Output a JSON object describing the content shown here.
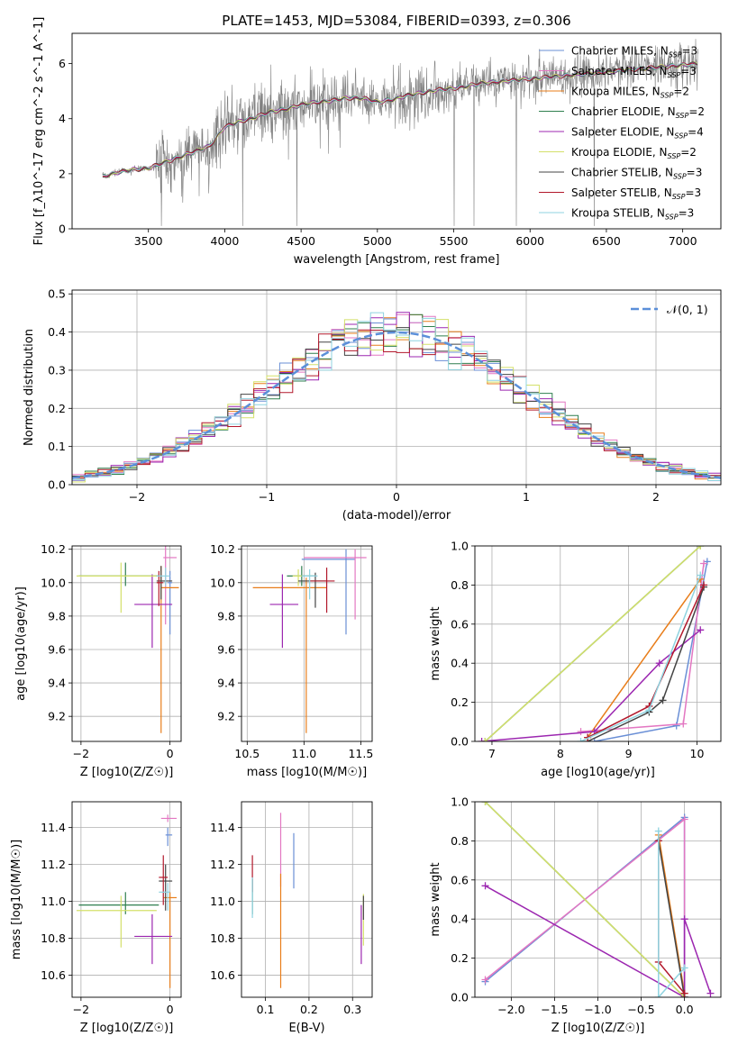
{
  "colors": {
    "miles_chabrier": "#6a8fd6",
    "miles_salpeter": "#e377c2",
    "miles_kroupa": "#e87d1a",
    "elodie_chabrier": "#2f7f4f",
    "elodie_salpeter": "#9c27b0",
    "elodie_kroupa": "#d4e06a",
    "stelib_chabrier": "#444444",
    "stelib_salpeter": "#b2182b",
    "stelib_kroupa": "#8fd3e0",
    "data": "#808080",
    "gauss": "#5b8fd9"
  },
  "chart_data": [
    {
      "id": "spectrum",
      "type": "line",
      "title": "PLATE=1453, MJD=53084, FIBERID=0393, z=0.306",
      "xlabel": "wavelength [Angstrom, rest frame]",
      "ylabel": "Flux [f_λ10^-17 erg cm^-2 s^-1 A^-1]",
      "xlim": [
        3000,
        7250
      ],
      "ylim": [
        0,
        7.1
      ],
      "xticks": [
        "3500",
        "4000",
        "4500",
        "5000",
        "5500",
        "6000",
        "6500",
        "7000"
      ],
      "yticks": [
        "0",
        "2",
        "4",
        "6"
      ],
      "grid": false,
      "legend_position": "top-right",
      "legend": [
        {
          "label": "Chabrier MILES, N_SSP=3",
          "color_key": "miles_chabrier"
        },
        {
          "label": "Salpeter MILES, N_SSP=3",
          "color_key": "miles_salpeter"
        },
        {
          "label": "Kroupa MILES, N_SSP=2",
          "color_key": "miles_kroupa"
        },
        {
          "label": "Chabrier ELODIE, N_SSP=2",
          "color_key": "elodie_chabrier"
        },
        {
          "label": "Salpeter ELODIE, N_SSP=4",
          "color_key": "elodie_salpeter"
        },
        {
          "label": "Kroupa ELODIE, N_SSP=2",
          "color_key": "elodie_kroupa"
        },
        {
          "label": "Chabrier STELIB, N_SSP=3",
          "color_key": "stelib_chabrier"
        },
        {
          "label": "Salpeter STELIB, N_SSP=3",
          "color_key": "stelib_salpeter"
        },
        {
          "label": "Kroupa STELIB, N_SSP=3",
          "color_key": "stelib_kroupa"
        }
      ],
      "continuum": {
        "x": [
          3200,
          3300,
          3400,
          3500,
          3600,
          3700,
          3800,
          3900,
          4000,
          4100,
          4200,
          4300,
          4400,
          4500,
          4600,
          4700,
          4800,
          4900,
          5000,
          5100,
          5200,
          5300,
          5400,
          5500,
          5600,
          5700,
          5800,
          5900,
          6000,
          6100,
          6200,
          6300,
          6400,
          6500,
          6600,
          6700,
          6800,
          6900,
          7000,
          7100
        ],
        "y": [
          1.9,
          2.05,
          2.15,
          2.2,
          2.4,
          2.6,
          2.8,
          3.0,
          3.7,
          3.9,
          4.05,
          4.25,
          4.35,
          4.5,
          4.6,
          4.65,
          4.75,
          4.75,
          4.6,
          4.7,
          4.85,
          4.95,
          5.05,
          5.1,
          5.2,
          5.3,
          5.35,
          5.4,
          5.45,
          5.5,
          5.55,
          5.6,
          5.65,
          5.7,
          5.75,
          5.8,
          5.85,
          5.9,
          5.95,
          6.0
        ]
      },
      "data_range": [
        3200,
        7100
      ]
    },
    {
      "id": "residuals",
      "type": "step",
      "xlabel": "(data-model)/error",
      "ylabel": "Normed distribution",
      "xlim": [
        -2.5,
        2.5
      ],
      "ylim": [
        0,
        0.51
      ],
      "xticks": [
        "−2",
        "−1",
        "0",
        "1",
        "2"
      ],
      "yticks": [
        "0.0",
        "0.1",
        "0.2",
        "0.3",
        "0.4",
        "0.5"
      ],
      "grid": true,
      "legend_position": "top-right",
      "legend_label": "𝒩(0, 1)",
      "bin_width": 0.1
    },
    {
      "id": "age_vs_Z",
      "type": "errorbar",
      "xlabel": "Z [log10(Z/Z☉)]",
      "ylabel": "age  [log10(age/yr)]",
      "xlim": [
        -2.2,
        0.25
      ],
      "ylim": [
        9.05,
        10.22
      ],
      "xticks": [
        "−2",
        "0"
      ],
      "yticks": [
        "9.2",
        "9.4",
        "9.6",
        "9.8",
        "10.0",
        "10.2"
      ],
      "grid": true,
      "points": [
        {
          "key": "miles_chabrier",
          "x": 0.0,
          "xlo": -0.05,
          "xhi": 0.05,
          "y": 10.0,
          "ylo": 9.69,
          "yhi": 10.07
        },
        {
          "key": "miles_salpeter",
          "x": -0.1,
          "xlo": -0.15,
          "xhi": 0.15,
          "y": 10.15,
          "ylo": 9.75,
          "yhi": 10.22
        },
        {
          "key": "miles_kroupa",
          "x": -0.2,
          "xlo": -0.2,
          "xhi": 0.2,
          "y": 9.97,
          "ylo": 9.1,
          "yhi": 10.1
        },
        {
          "key": "elodie_chabrier",
          "x": -1.0,
          "xlo": -2.05,
          "xhi": -0.25,
          "y": 10.04,
          "ylo": 9.98,
          "yhi": 10.12
        },
        {
          "key": "elodie_salpeter",
          "x": -0.4,
          "xlo": -0.8,
          "xhi": 0.05,
          "y": 9.87,
          "ylo": 9.61,
          "yhi": 10.05
        },
        {
          "key": "elodie_kroupa",
          "x": -1.1,
          "xlo": -2.1,
          "xhi": -0.3,
          "y": 10.04,
          "ylo": 9.82,
          "yhi": 10.12
        },
        {
          "key": "stelib_chabrier",
          "x": -0.2,
          "xlo": -0.3,
          "xhi": 0.05,
          "y": 10.01,
          "ylo": 9.9,
          "yhi": 10.1
        },
        {
          "key": "stelib_salpeter",
          "x": -0.25,
          "xlo": -0.3,
          "xhi": -0.15,
          "y": 10.0,
          "ylo": 9.86,
          "yhi": 10.07
        },
        {
          "key": "stelib_kroupa",
          "x": -0.1,
          "xlo": -0.3,
          "xhi": 0.0,
          "y": 10.04,
          "ylo": 9.98,
          "yhi": 10.09
        }
      ]
    },
    {
      "id": "age_vs_mass",
      "type": "errorbar",
      "xlabel": "mass [log10(M/M☉)]",
      "ylabel": "",
      "xlim": [
        10.45,
        11.6
      ],
      "ylim": [
        9.05,
        10.22
      ],
      "xticks": [
        "10.5",
        "11.0",
        "11.5"
      ],
      "yticks": [
        "9.2",
        "9.4",
        "9.6",
        "9.8",
        "10.0",
        "10.2"
      ],
      "grid": true,
      "points": [
        {
          "key": "miles_chabrier",
          "x": 11.37,
          "xlo": 10.98,
          "xhi": 11.45,
          "y": 10.14,
          "ylo": 9.69,
          "yhi": 10.2
        },
        {
          "key": "miles_salpeter",
          "x": 11.45,
          "xlo": 11.0,
          "xhi": 11.55,
          "y": 10.15,
          "ylo": 9.78,
          "yhi": 10.2
        },
        {
          "key": "miles_kroupa",
          "x": 11.02,
          "xlo": 10.55,
          "xhi": 11.2,
          "y": 9.97,
          "ylo": 9.1,
          "yhi": 10.03
        },
        {
          "key": "elodie_chabrier",
          "x": 10.98,
          "xlo": 10.85,
          "xhi": 11.1,
          "y": 10.04,
          "ylo": 9.98,
          "yhi": 10.1
        },
        {
          "key": "elodie_salpeter",
          "x": 10.81,
          "xlo": 10.7,
          "xhi": 10.95,
          "y": 9.87,
          "ylo": 9.61,
          "yhi": 10.05
        },
        {
          "key": "elodie_kroupa",
          "x": 10.95,
          "xlo": 10.9,
          "xhi": 11.0,
          "y": 10.04,
          "ylo": 9.98,
          "yhi": 10.08
        },
        {
          "key": "stelib_chabrier",
          "x": 11.1,
          "xlo": 10.95,
          "xhi": 11.2,
          "y": 10.01,
          "ylo": 9.85,
          "yhi": 10.06
        },
        {
          "key": "stelib_salpeter",
          "x": 11.2,
          "xlo": 11.05,
          "xhi": 11.27,
          "y": 10.01,
          "ylo": 9.82,
          "yhi": 10.09
        },
        {
          "key": "stelib_kroupa",
          "x": 11.05,
          "xlo": 10.98,
          "xhi": 11.12,
          "y": 10.04,
          "ylo": 9.9,
          "yhi": 10.08
        }
      ]
    },
    {
      "id": "mass_weight_vs_age",
      "type": "line",
      "xlabel": "age  [log10(age/yr)]",
      "ylabel": "mass weight",
      "xlim": [
        6.75,
        10.35
      ],
      "ylim": [
        0,
        1.0
      ],
      "xticks": [
        "7",
        "8",
        "9",
        "10"
      ],
      "yticks": [
        "0.0",
        "0.2",
        "0.4",
        "0.6",
        "0.8",
        "1.0"
      ],
      "grid": true,
      "series": [
        {
          "key": "miles_chabrier",
          "x": [
            8.5,
            9.7,
            10.15
          ],
          "y": [
            0.0,
            0.08,
            0.92
          ]
        },
        {
          "key": "miles_salpeter",
          "x": [
            8.3,
            9.8,
            10.1
          ],
          "y": [
            0.05,
            0.09,
            0.91
          ]
        },
        {
          "key": "miles_kroupa",
          "x": [
            8.4,
            10.05
          ],
          "y": [
            0.02,
            0.83
          ]
        },
        {
          "key": "elodie_chabrier",
          "x": [
            6.9,
            10.05
          ],
          "y": [
            0.0,
            1.0
          ]
        },
        {
          "key": "elodie_salpeter",
          "x": [
            6.85,
            8.5,
            9.45,
            10.05
          ],
          "y": [
            0.0,
            0.05,
            0.4,
            0.57
          ]
        },
        {
          "key": "elodie_kroupa",
          "x": [
            6.9,
            10.05
          ],
          "y": [
            0.0,
            1.0
          ]
        },
        {
          "key": "stelib_chabrier",
          "x": [
            8.4,
            9.3,
            9.5,
            10.1
          ],
          "y": [
            0.0,
            0.15,
            0.21,
            0.79
          ]
        },
        {
          "key": "stelib_salpeter",
          "x": [
            8.4,
            9.3,
            10.1
          ],
          "y": [
            0.02,
            0.18,
            0.8
          ]
        },
        {
          "key": "stelib_kroupa",
          "x": [
            8.3,
            9.3,
            10.05
          ],
          "y": [
            0.0,
            0.16,
            0.85
          ]
        }
      ]
    },
    {
      "id": "mass_vs_Z",
      "type": "errorbar",
      "xlabel": "Z [log10(Z/Z☉)]",
      "ylabel": "mass [log10(M/M☉)]",
      "xlim": [
        -2.2,
        0.25
      ],
      "ylim": [
        10.48,
        11.54
      ],
      "xticks": [
        "−2",
        "0"
      ],
      "yticks": [
        "10.6",
        "10.8",
        "11.0",
        "11.2",
        "11.4"
      ],
      "grid": true,
      "points": [
        {
          "key": "miles_chabrier",
          "x": -0.05,
          "xlo": -0.1,
          "xhi": 0.05,
          "y": 11.36,
          "ylo": 11.3,
          "yhi": 11.4
        },
        {
          "key": "miles_salpeter",
          "x": -0.05,
          "xlo": -0.2,
          "xhi": 0.15,
          "y": 11.45,
          "ylo": 11.43,
          "yhi": 11.47
        },
        {
          "key": "miles_kroupa",
          "x": 0.0,
          "xlo": -0.15,
          "xhi": 0.15,
          "y": 11.02,
          "ylo": 10.53,
          "yhi": 11.05
        },
        {
          "key": "elodie_chabrier",
          "x": -1.0,
          "xlo": -2.05,
          "xhi": -0.25,
          "y": 10.98,
          "ylo": 10.93,
          "yhi": 11.05
        },
        {
          "key": "elodie_salpeter",
          "x": -0.4,
          "xlo": -0.8,
          "xhi": 0.05,
          "y": 10.81,
          "ylo": 10.66,
          "yhi": 10.93
        },
        {
          "key": "elodie_kroupa",
          "x": -1.1,
          "xlo": -2.1,
          "xhi": -0.3,
          "y": 10.95,
          "ylo": 10.75,
          "yhi": 11.03
        },
        {
          "key": "stelib_chabrier",
          "x": -0.1,
          "xlo": -0.25,
          "xhi": 0.05,
          "y": 11.11,
          "ylo": 10.95,
          "yhi": 11.2
        },
        {
          "key": "stelib_salpeter",
          "x": -0.15,
          "xlo": -0.25,
          "xhi": -0.05,
          "y": 11.13,
          "ylo": 10.98,
          "yhi": 11.25
        },
        {
          "key": "stelib_kroupa",
          "x": -0.05,
          "xlo": -0.25,
          "xhi": 0.0,
          "y": 11.05,
          "ylo": 10.95,
          "yhi": 11.1
        }
      ]
    },
    {
      "id": "mass_vs_EBV",
      "type": "errorbar",
      "xlabel": "E(B-V)",
      "ylabel": "",
      "xlim": [
        0.045,
        0.345
      ],
      "ylim": [
        10.48,
        11.54
      ],
      "xticks": [
        "0.1",
        "0.2",
        "0.3"
      ],
      "yticks": [
        "10.6",
        "10.8",
        "11.0",
        "11.2",
        "11.4"
      ],
      "grid": true,
      "points": [
        {
          "key": "miles_chabrier",
          "x": 0.165,
          "xlo": 0.165,
          "xhi": 0.165,
          "y": 11.2,
          "ylo": 11.07,
          "yhi": 11.37
        },
        {
          "key": "miles_salpeter",
          "x": 0.135,
          "xlo": 0.135,
          "xhi": 0.135,
          "y": 11.28,
          "ylo": 11.08,
          "yhi": 11.48
        },
        {
          "key": "miles_kroupa",
          "x": 0.135,
          "xlo": 0.135,
          "xhi": 0.135,
          "y": 10.85,
          "ylo": 10.53,
          "yhi": 11.15
        },
        {
          "key": "elodie_chabrier",
          "x": 0.07,
          "xlo": 0.07,
          "xhi": 0.07,
          "y": 11.0,
          "ylo": 10.93,
          "yhi": 11.12
        },
        {
          "key": "elodie_salpeter",
          "x": 0.32,
          "xlo": 0.32,
          "xhi": 0.32,
          "y": 10.82,
          "ylo": 10.66,
          "yhi": 10.98
        },
        {
          "key": "elodie_kroupa",
          "x": 0.325,
          "xlo": 0.325,
          "xhi": 0.325,
          "y": 10.9,
          "ylo": 10.76,
          "yhi": 11.04
        },
        {
          "key": "stelib_chabrier",
          "x": 0.325,
          "xlo": 0.325,
          "xhi": 0.325,
          "y": 10.95,
          "ylo": 10.9,
          "yhi": 11.03
        },
        {
          "key": "stelib_salpeter",
          "x": 0.07,
          "xlo": 0.07,
          "xhi": 0.07,
          "y": 11.15,
          "ylo": 11.05,
          "yhi": 11.25
        },
        {
          "key": "stelib_kroupa",
          "x": 0.07,
          "xlo": 0.07,
          "xhi": 0.07,
          "y": 11.0,
          "ylo": 10.91,
          "yhi": 11.13
        }
      ]
    },
    {
      "id": "mass_weight_vs_Z",
      "type": "line",
      "xlabel": "Z [log10(Z/Z☉)]",
      "ylabel": "mass weight",
      "xlim": [
        -2.42,
        0.42
      ],
      "ylim": [
        0,
        1.0
      ],
      "xticks": [
        "−2.0",
        "−1.5",
        "−1.0",
        "−0.5",
        "0.0"
      ],
      "yticks": [
        "0.0",
        "0.2",
        "0.4",
        "0.6",
        "0.8",
        "1.0"
      ],
      "grid": true,
      "series": [
        {
          "key": "miles_chabrier",
          "x": [
            -2.3,
            0.0,
            0.0
          ],
          "y": [
            0.08,
            0.92,
            0.0
          ]
        },
        {
          "key": "miles_salpeter",
          "x": [
            -2.3,
            0.0,
            0.0
          ],
          "y": [
            0.09,
            0.91,
            0.0
          ]
        },
        {
          "key": "miles_kroupa",
          "x": [
            -0.3,
            0.0
          ],
          "y": [
            0.83,
            0.02
          ]
        },
        {
          "key": "elodie_chabrier",
          "x": [
            -2.3,
            0.0
          ],
          "y": [
            1.0,
            0.0
          ]
        },
        {
          "key": "elodie_salpeter",
          "x": [
            -2.3,
            0.0,
            0.0,
            0.3
          ],
          "y": [
            0.57,
            0.0,
            0.4,
            0.02
          ]
        },
        {
          "key": "elodie_kroupa",
          "x": [
            -2.3,
            0.0
          ],
          "y": [
            1.0,
            0.0
          ]
        },
        {
          "key": "stelib_chabrier",
          "x": [
            -0.3,
            0.0
          ],
          "y": [
            0.8,
            0.0
          ]
        },
        {
          "key": "stelib_salpeter",
          "x": [
            -0.3,
            -0.3,
            0.0
          ],
          "y": [
            0.8,
            0.18,
            0.02
          ]
        },
        {
          "key": "stelib_kroupa",
          "x": [
            -0.3,
            -0.3,
            0.0
          ],
          "y": [
            0.85,
            0.0,
            0.15
          ]
        }
      ]
    }
  ]
}
